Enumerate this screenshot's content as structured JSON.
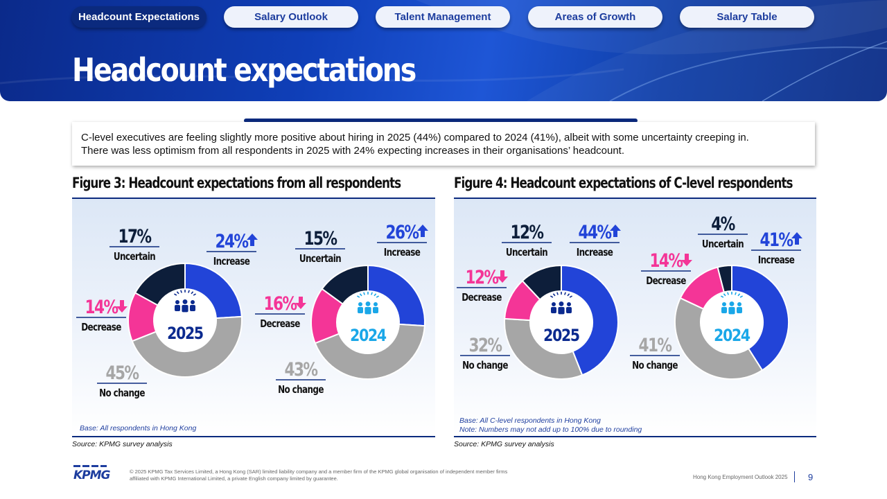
{
  "nav": {
    "tabs": [
      {
        "label": "Headcount Expectations",
        "active": true
      },
      {
        "label": "Salary Outlook",
        "active": false
      },
      {
        "label": "Talent Management",
        "active": false
      },
      {
        "label": "Areas of Growth",
        "active": false
      },
      {
        "label": "Salary Table",
        "active": false
      }
    ]
  },
  "page": {
    "title": "Headcount expectations",
    "summary_line1": "C-level executives are feeling slightly more positive about hiring in 2025 (44%) compared to 2024 (41%), albeit with some uncertainty creeping in.",
    "summary_line2": "There was less optimism from all respondents in 2025 with 24% expecting increases in their organisations’ headcount."
  },
  "colors": {
    "increase": "#2244d8",
    "no_change": "#a6a6a6",
    "decrease": "#f43597",
    "uncertain": "#0d1e3a",
    "year_2025": "#0b2a8f",
    "year_2024": "#1aa7e8",
    "accent": "#0b2a7e"
  },
  "figures": [
    {
      "title": "Figure 3: Headcount expectations from all respondents",
      "base": "Base: All respondents in Hong Kong",
      "note": "",
      "source": "Source: KPMG survey analysis"
    },
    {
      "title": "Figure 4: Headcount expectations of C-level respondents",
      "base": "Base: All C-level respondents in Hong Kong",
      "note": "Note: Numbers may not add up to 100% due to rounding",
      "source": "Source: KPMG survey analysis"
    }
  ],
  "chart_data": [
    {
      "type": "pie",
      "figure": "Figure 3",
      "center_label": "2025",
      "categories": [
        "Increase",
        "No change",
        "Decrease",
        "Uncertain"
      ],
      "values": [
        24,
        45,
        14,
        17
      ],
      "labels": [
        "24%",
        "45%",
        "14%",
        "17%"
      ]
    },
    {
      "type": "pie",
      "figure": "Figure 3",
      "center_label": "2024",
      "categories": [
        "Increase",
        "No change",
        "Decrease",
        "Uncertain"
      ],
      "values": [
        26,
        43,
        16,
        15
      ],
      "labels": [
        "26%",
        "43%",
        "16%",
        "15%"
      ]
    },
    {
      "type": "pie",
      "figure": "Figure 4",
      "center_label": "2025",
      "categories": [
        "Increase",
        "No change",
        "Decrease",
        "Uncertain"
      ],
      "values": [
        44,
        32,
        12,
        12
      ],
      "labels": [
        "44%",
        "32%",
        "12%",
        "12%"
      ]
    },
    {
      "type": "pie",
      "figure": "Figure 4",
      "center_label": "2024",
      "categories": [
        "Increase",
        "No change",
        "Decrease",
        "Uncertain"
      ],
      "values": [
        41,
        41,
        14,
        4
      ],
      "labels": [
        "41%",
        "41%",
        "14%",
        "4%"
      ]
    }
  ],
  "footer": {
    "logo": "KPMG",
    "legal_line1": "© 2025 KPMG Tax Services Limited, a Hong Kong (SAR) limited liability company and a member firm of the KPMG global organisation of independent member firms",
    "legal_line2": "affiliated with KPMG International Limited, a private English company limited by guarantee.",
    "report": "Hong Kong Employment Outlook 2025",
    "page_number": "9"
  }
}
